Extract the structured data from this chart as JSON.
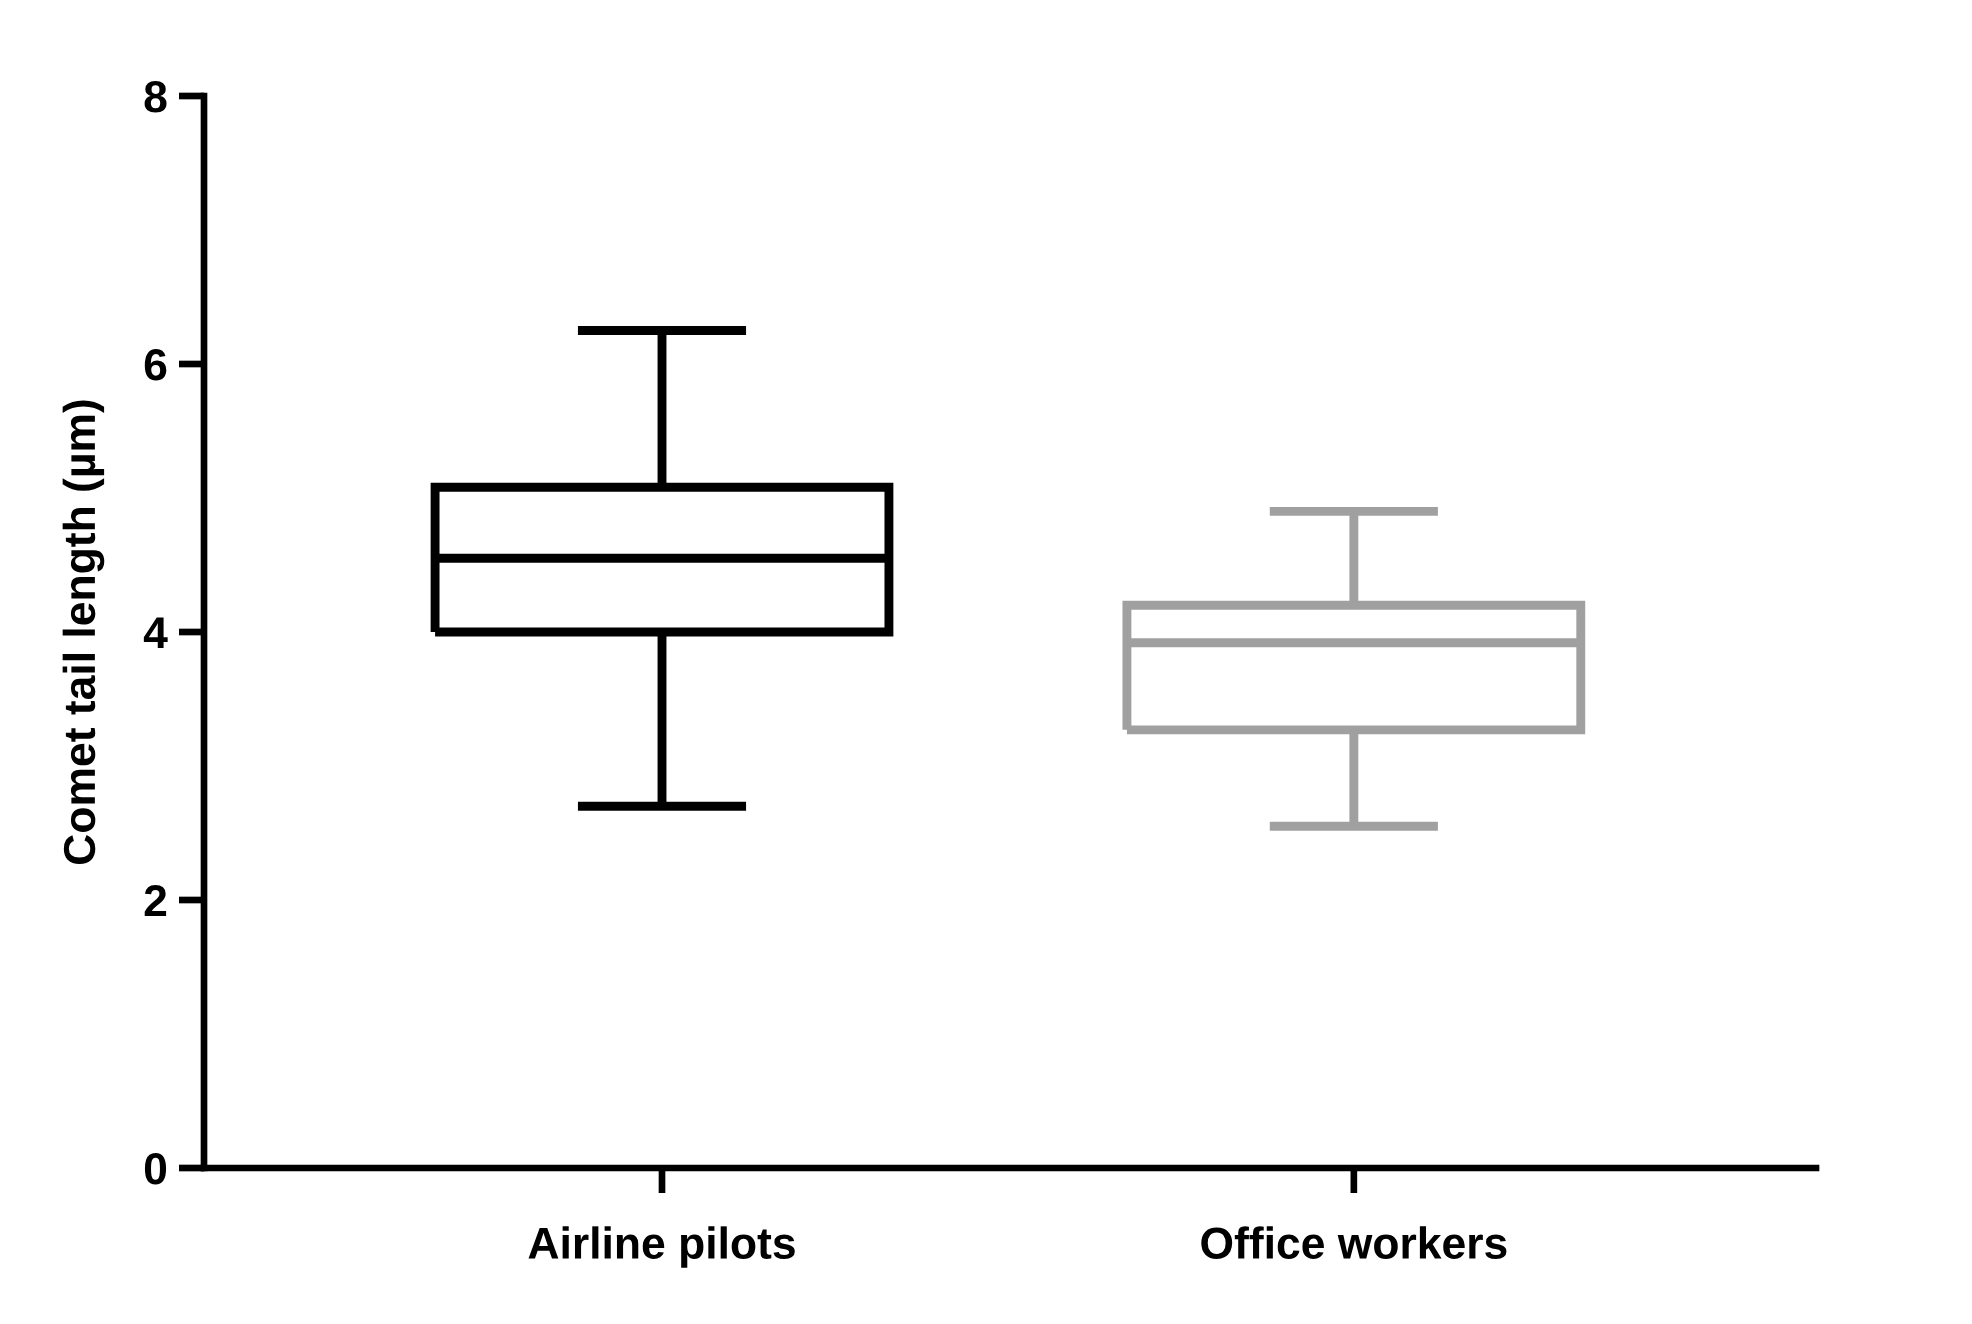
{
  "chart_data": {
    "type": "box",
    "categories": [
      "Airline pilots",
      "Office workers"
    ],
    "ylabel": "Comet tail length (µm)",
    "ylim": [
      0,
      8
    ],
    "yticks": [
      0,
      2,
      4,
      6,
      8
    ],
    "colors": [
      "#000000",
      "#a0a0a0"
    ],
    "boxes": [
      {
        "low": 2.7,
        "q1": 4.0,
        "median": 4.55,
        "q3": 5.08,
        "high": 6.25
      },
      {
        "low": 2.55,
        "q1": 3.27,
        "median": 3.92,
        "q3": 4.2,
        "high": 4.9
      }
    ]
  }
}
